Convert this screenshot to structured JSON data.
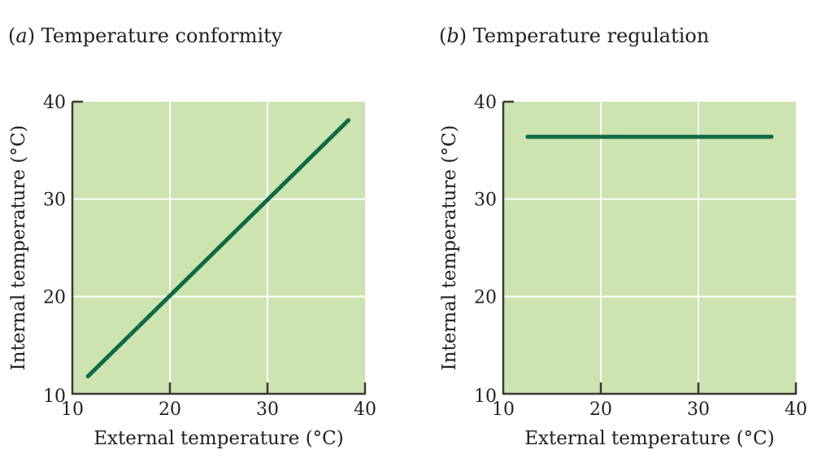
{
  "colors": {
    "plot_bg": "#cde3b0",
    "grid": "#ffffff",
    "axis": "#3a3a3a",
    "line": "#0f6a44",
    "text": "#231f20"
  },
  "chart_data": [
    {
      "type": "line",
      "panel_letter": "a",
      "title": "Temperature conformity",
      "xlabel": "External temperature (°C)",
      "ylabel": "Internal temperature (°C)",
      "xlim": [
        10,
        40
      ],
      "ylim": [
        10,
        40
      ],
      "xticks": [
        "10",
        "20",
        "30",
        "40"
      ],
      "yticks": [
        "10",
        "20",
        "30",
        "40"
      ],
      "grid": true,
      "series": [
        {
          "name": "Internal temperature",
          "x": [
            11.6,
            38.3
          ],
          "y": [
            11.8,
            38.1
          ]
        }
      ]
    },
    {
      "type": "line",
      "panel_letter": "b",
      "title": "Temperature regulation",
      "xlabel": "External temperature (°C)",
      "ylabel": "Internal temperature (°C)",
      "xlim": [
        10,
        40
      ],
      "ylim": [
        10,
        40
      ],
      "xticks": [
        "10",
        "20",
        "30",
        "40"
      ],
      "yticks": [
        "10",
        "20",
        "30",
        "40"
      ],
      "grid": true,
      "series": [
        {
          "name": "Internal temperature",
          "x": [
            12.5,
            37.5
          ],
          "y": [
            36.4,
            36.4
          ]
        }
      ]
    }
  ]
}
